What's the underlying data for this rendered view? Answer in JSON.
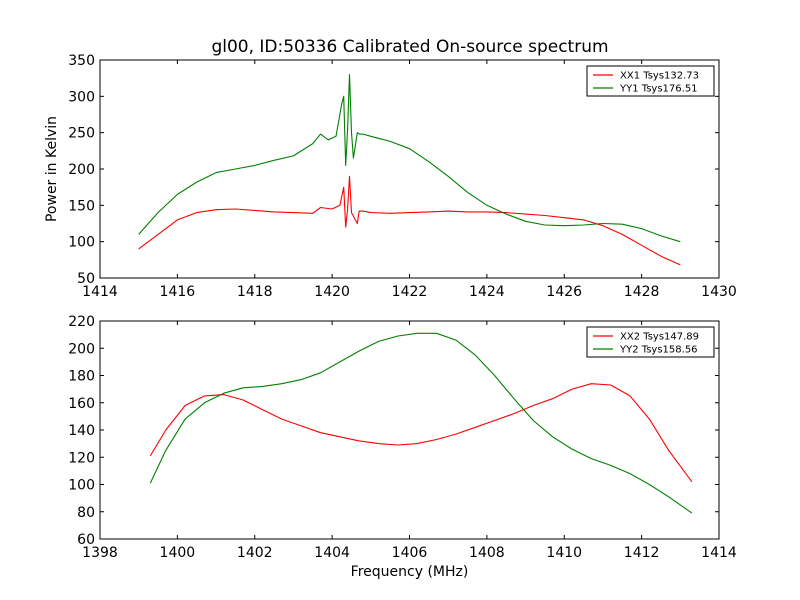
{
  "title": "gl00, ID:50336 Calibrated On-source spectrum",
  "chart_data": [
    {
      "type": "line",
      "title": "gl00, ID:50336 Calibrated On-source spectrum",
      "xlabel": "",
      "ylabel": "Power in Kelvin",
      "xlim": [
        1414,
        1430
      ],
      "ylim": [
        50,
        350
      ],
      "xticks": [
        1414,
        1416,
        1418,
        1420,
        1422,
        1424,
        1426,
        1428,
        1430
      ],
      "yticks": [
        50,
        100,
        150,
        200,
        250,
        300,
        350
      ],
      "grid": false,
      "legend": "top-right",
      "series": [
        {
          "name": "XX1 Tsys132.73",
          "color": "#ff0000",
          "x": [
            1415,
            1415.5,
            1416,
            1416.5,
            1417,
            1417.5,
            1418,
            1418.5,
            1419,
            1419.5,
            1419.7,
            1420,
            1420.2,
            1420.3,
            1420.35,
            1420.4,
            1420.45,
            1420.5,
            1420.55,
            1420.65,
            1420.7,
            1420.8,
            1421,
            1421.5,
            1422,
            1422.5,
            1423,
            1423.5,
            1424,
            1424.5,
            1425,
            1425.5,
            1426,
            1426.5,
            1427,
            1427.5,
            1428,
            1428.5,
            1429
          ],
          "y": [
            90,
            110,
            130,
            140,
            144,
            145,
            143,
            141,
            140,
            139,
            147,
            145,
            150,
            175,
            120,
            145,
            190,
            140,
            135,
            125,
            142,
            142,
            140,
            139,
            140,
            141,
            142,
            141,
            141,
            140,
            138,
            136,
            133,
            130,
            122,
            110,
            95,
            80,
            68
          ]
        },
        {
          "name": "YY1 Tsys176.51",
          "color": "#008000",
          "x": [
            1415,
            1415.5,
            1416,
            1416.5,
            1417,
            1417.5,
            1418,
            1418.5,
            1419,
            1419.5,
            1419.7,
            1419.9,
            1420.1,
            1420.25,
            1420.3,
            1420.35,
            1420.4,
            1420.45,
            1420.5,
            1420.55,
            1420.65,
            1420.7,
            1420.8,
            1421,
            1421.5,
            1422,
            1422.5,
            1423,
            1423.5,
            1424,
            1424.5,
            1425,
            1425.5,
            1426,
            1426.5,
            1427,
            1427.5,
            1428,
            1428.5,
            1429
          ],
          "y": [
            110,
            140,
            165,
            182,
            195,
            200,
            205,
            212,
            218,
            235,
            248,
            240,
            245,
            290,
            300,
            205,
            255,
            330,
            250,
            215,
            250,
            248,
            248,
            245,
            238,
            228,
            210,
            190,
            168,
            150,
            138,
            128,
            123,
            122,
            123,
            125,
            124,
            118,
            108,
            100
          ]
        }
      ]
    },
    {
      "type": "line",
      "title": "",
      "xlabel": "Frequency (MHz)",
      "ylabel": "",
      "xlim": [
        1398,
        1414
      ],
      "ylim": [
        60,
        220
      ],
      "xticks": [
        1398,
        1400,
        1402,
        1404,
        1406,
        1408,
        1410,
        1412,
        1414
      ],
      "yticks": [
        60,
        80,
        100,
        120,
        140,
        160,
        180,
        200,
        220
      ],
      "grid": false,
      "legend": "top-right",
      "series": [
        {
          "name": "XX2 Tsys147.89",
          "color": "#ff0000",
          "x": [
            1399.3,
            1399.7,
            1400.2,
            1400.7,
            1401.2,
            1401.7,
            1402.2,
            1402.7,
            1403.2,
            1403.7,
            1404.2,
            1404.7,
            1405.2,
            1405.7,
            1406.2,
            1406.7,
            1407.2,
            1407.7,
            1408.2,
            1408.7,
            1409.2,
            1409.7,
            1410.2,
            1410.7,
            1411.2,
            1411.7,
            1412.2,
            1412.7,
            1413.3
          ],
          "y": [
            121,
            140,
            158,
            165,
            166,
            162,
            155,
            148,
            143,
            138,
            135,
            132,
            130,
            129,
            130,
            133,
            137,
            142,
            147,
            152,
            158,
            163,
            170,
            174,
            173,
            165,
            148,
            125,
            102
          ]
        },
        {
          "name": "YY2 Tsys158.56",
          "color": "#008000",
          "x": [
            1399.3,
            1399.7,
            1400.2,
            1400.7,
            1401.2,
            1401.7,
            1402.2,
            1402.7,
            1403.2,
            1403.7,
            1404.2,
            1404.7,
            1405.2,
            1405.7,
            1406.2,
            1406.7,
            1407.2,
            1407.7,
            1408.2,
            1408.7,
            1409.2,
            1409.7,
            1410.2,
            1410.7,
            1411.2,
            1411.7,
            1412.2,
            1412.7,
            1413.3
          ],
          "y": [
            101,
            125,
            148,
            160,
            167,
            171,
            172,
            174,
            177,
            182,
            190,
            198,
            205,
            209,
            211,
            211,
            206,
            195,
            180,
            163,
            147,
            135,
            126,
            119,
            114,
            108,
            100,
            91,
            79
          ]
        }
      ]
    }
  ]
}
